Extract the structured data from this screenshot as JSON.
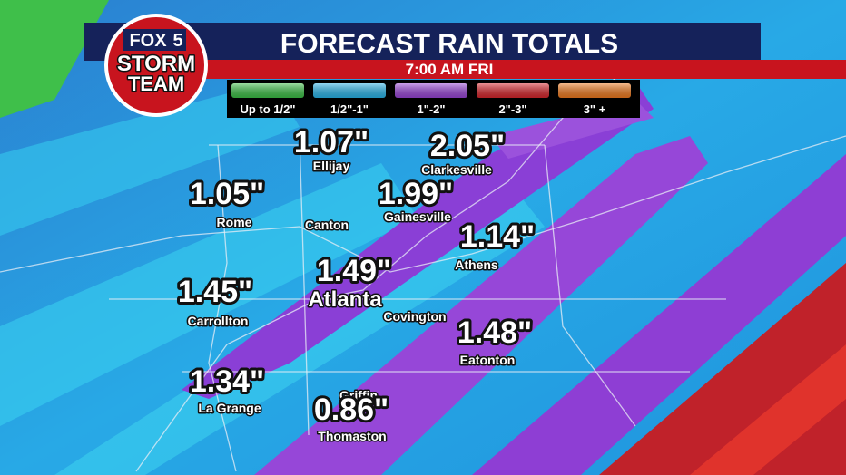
{
  "header": {
    "title": "FORECAST RAIN TOTALS",
    "time": "7:00 AM FRI"
  },
  "logo": {
    "brand": "FOX",
    "channel": "5",
    "line1": "STORM",
    "line2": "TEAM"
  },
  "legend": {
    "items": [
      "Up to 1/2\"",
      "1/2\"-1\"",
      "1\"-2\"",
      "2\"-3\"",
      "3\" +"
    ]
  },
  "locations": [
    {
      "name": "Ellijay",
      "amount": "1.07\""
    },
    {
      "name": "Clarkesville",
      "amount": "2.05\""
    },
    {
      "name": "Rome",
      "amount": "1.05\""
    },
    {
      "name": "Gainesville",
      "amount": "1.99\""
    },
    {
      "name": "Canton"
    },
    {
      "name": "Athens",
      "amount": "1.14\""
    },
    {
      "name": "Atlanta",
      "amount": "1.49\""
    },
    {
      "name": "Carrollton",
      "amount": "1.45\""
    },
    {
      "name": "Covington"
    },
    {
      "name": "Eatonton",
      "amount": "1.48\""
    },
    {
      "name": "Griffin"
    },
    {
      "name": "La Grange",
      "amount": "1.34\""
    },
    {
      "name": "Thomaston",
      "amount": "0.86\""
    }
  ]
}
